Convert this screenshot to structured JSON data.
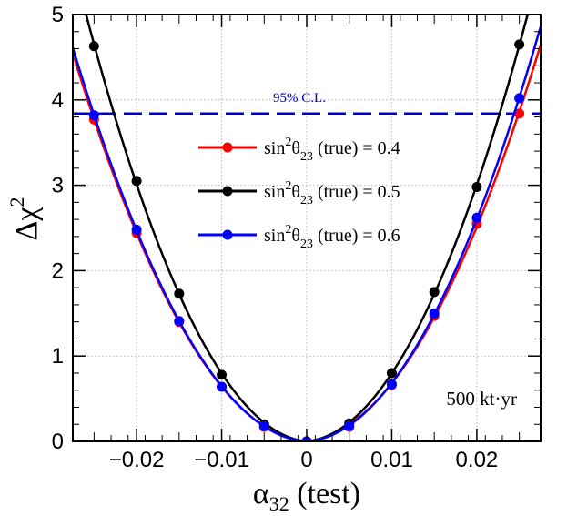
{
  "chart_data": {
    "type": "line",
    "title": "",
    "xlabel": "α32 (test)",
    "xlabel_symbol": "α",
    "xlabel_sub": "32",
    "xlabel_suffix": " (test)",
    "ylabel": "Δχ2",
    "ylabel_symbol": "Δχ",
    "ylabel_sup": "2",
    "xlim": [
      -0.0275,
      0.0275
    ],
    "ylim": [
      0,
      5
    ],
    "x_ticks": [
      -0.02,
      -0.01,
      0,
      0.01,
      0.02
    ],
    "x_tick_labels": [
      "−0.02",
      "−0.01",
      "0",
      "0.01",
      "0.02"
    ],
    "y_ticks": [
      0,
      1,
      2,
      3,
      4,
      5
    ],
    "y_tick_labels": [
      "0",
      "1",
      "2",
      "3",
      "4",
      "5"
    ],
    "grid": true,
    "legend_position": "upper-center",
    "x": [
      -0.025,
      -0.02,
      -0.015,
      -0.01,
      -0.005,
      0,
      0.005,
      0.01,
      0.015,
      0.02,
      0.025
    ],
    "series": [
      {
        "name": "sin2θ23 (true) = 0.4",
        "label_prefix": "sin",
        "label_sup": "2",
        "label_theta": "θ",
        "label_sub": "23",
        "label_suffix": " (true) = 0.4",
        "color": "#ff0000",
        "values": [
          3.77,
          2.44,
          1.4,
          0.64,
          0.17,
          0.0,
          0.17,
          0.66,
          1.47,
          2.55,
          3.84
        ]
      },
      {
        "name": "sin2θ23 (true) = 0.5",
        "label_prefix": "sin",
        "label_sup": "2",
        "label_theta": "θ",
        "label_sub": "23",
        "label_suffix": " (true) = 0.5",
        "color": "#000000",
        "values": [
          4.63,
          3.05,
          1.73,
          0.78,
          0.2,
          0.0,
          0.21,
          0.8,
          1.75,
          2.98,
          4.65
        ]
      },
      {
        "name": "sin2θ23 (true) = 0.6",
        "label_prefix": "sin",
        "label_sup": "2",
        "label_theta": "θ",
        "label_sub": "23",
        "label_suffix": " (true) = 0.6",
        "color": "#0000ff",
        "values": [
          3.82,
          2.48,
          1.41,
          0.64,
          0.18,
          0.0,
          0.18,
          0.67,
          1.5,
          2.62,
          4.02
        ]
      }
    ],
    "reference_line": {
      "label": "95% C.L.",
      "y": 3.84,
      "color": "#0000cc"
    },
    "annotation": "500 kt·yr"
  }
}
